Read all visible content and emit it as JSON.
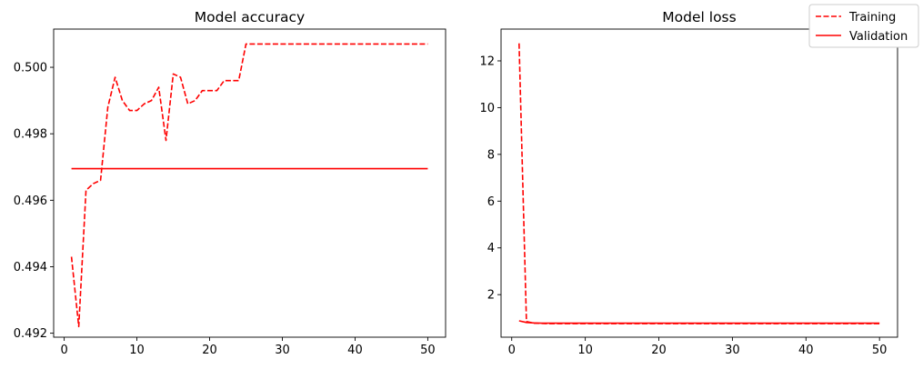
{
  "legend": {
    "placement": "top-right",
    "entries": [
      {
        "name": "Training",
        "style": "dashed",
        "color": "#ff0000"
      },
      {
        "name": "Validation",
        "style": "solid",
        "color": "#ff0000"
      }
    ]
  },
  "chart_data": [
    {
      "type": "line",
      "title": "Model accuracy",
      "xlabel": "",
      "ylabel": "",
      "xlim": [
        -1.45,
        52.45
      ],
      "ylim": [
        0.49188,
        0.50115
      ],
      "xticks": [
        0,
        10,
        20,
        30,
        40,
        50
      ],
      "yticks": [
        0.492,
        0.494,
        0.496,
        0.498,
        0.5
      ],
      "ytick_labels": [
        "0.492",
        "0.494",
        "0.496",
        "0.498",
        "0.500"
      ],
      "grid": false,
      "series": [
        {
          "name": "Training",
          "style": "dashed",
          "color": "#ff0000",
          "x": [
            1,
            2,
            3,
            4,
            5,
            6,
            7,
            8,
            9,
            10,
            11,
            12,
            13,
            14,
            15,
            16,
            17,
            18,
            19,
            20,
            21,
            22,
            23,
            24,
            25,
            26,
            27,
            28,
            29,
            30,
            31,
            32,
            33,
            34,
            35,
            36,
            37,
            38,
            39,
            40,
            41,
            42,
            43,
            44,
            45,
            46,
            47,
            48,
            49,
            50
          ],
          "values": [
            0.4943,
            0.4922,
            0.4963,
            0.4965,
            0.4966,
            0.4988,
            0.4997,
            0.499,
            0.4987,
            0.4987,
            0.4989,
            0.499,
            0.4994,
            0.4978,
            0.4998,
            0.4997,
            0.4989,
            0.499,
            0.4993,
            0.4993,
            0.4993,
            0.4996,
            0.4996,
            0.4996,
            0.5007,
            0.5007,
            0.5007,
            0.5007,
            0.5007,
            0.5007,
            0.5007,
            0.5007,
            0.5007,
            0.5007,
            0.5007,
            0.5007,
            0.5007,
            0.5007,
            0.5007,
            0.5007,
            0.5007,
            0.5007,
            0.5007,
            0.5007,
            0.5007,
            0.5007,
            0.5007,
            0.5007,
            0.5007,
            0.5007
          ]
        },
        {
          "name": "Validation",
          "style": "solid",
          "color": "#ff0000",
          "x": [
            1,
            50
          ],
          "values": [
            0.49695,
            0.49695
          ]
        }
      ]
    },
    {
      "type": "line",
      "title": "Model loss",
      "xlabel": "",
      "ylabel": "",
      "xlim": [
        -1.45,
        52.45
      ],
      "ylim": [
        0.18,
        13.36
      ],
      "xticks": [
        0,
        10,
        20,
        30,
        40,
        50
      ],
      "yticks": [
        2,
        4,
        6,
        8,
        10,
        12
      ],
      "ytick_labels": [
        "2",
        "4",
        "6",
        "8",
        "10",
        "12"
      ],
      "grid": false,
      "series": [
        {
          "name": "Training",
          "style": "dashed",
          "color": "#ff0000",
          "x": [
            1,
            2,
            3,
            4,
            5,
            6,
            7,
            8,
            9,
            10,
            11,
            12,
            13,
            14,
            15,
            16,
            17,
            18,
            19,
            20,
            21,
            22,
            23,
            24,
            25,
            26,
            27,
            28,
            29,
            30,
            31,
            32,
            33,
            34,
            35,
            36,
            37,
            38,
            39,
            40,
            41,
            42,
            43,
            44,
            45,
            46,
            47,
            48,
            49,
            50
          ],
          "values": [
            12.75,
            0.85,
            0.78,
            0.77,
            0.76,
            0.76,
            0.76,
            0.76,
            0.76,
            0.76,
            0.76,
            0.76,
            0.76,
            0.76,
            0.76,
            0.76,
            0.76,
            0.76,
            0.76,
            0.76,
            0.76,
            0.76,
            0.76,
            0.76,
            0.76,
            0.76,
            0.76,
            0.76,
            0.76,
            0.76,
            0.76,
            0.76,
            0.76,
            0.76,
            0.76,
            0.76,
            0.76,
            0.76,
            0.76,
            0.76,
            0.76,
            0.76,
            0.76,
            0.76,
            0.76,
            0.76,
            0.76,
            0.76,
            0.76,
            0.76
          ]
        },
        {
          "name": "Validation",
          "style": "solid",
          "color": "#ff0000",
          "x": [
            1,
            2,
            3,
            4,
            5,
            6,
            7,
            8,
            9,
            10,
            11,
            12,
            13,
            14,
            15,
            16,
            17,
            18,
            19,
            20,
            21,
            22,
            23,
            24,
            25,
            26,
            27,
            28,
            29,
            30,
            31,
            32,
            33,
            34,
            35,
            36,
            37,
            38,
            39,
            40,
            41,
            42,
            43,
            44,
            45,
            46,
            47,
            48,
            49,
            50
          ],
          "values": [
            0.88,
            0.81,
            0.79,
            0.78,
            0.78,
            0.78,
            0.78,
            0.78,
            0.78,
            0.78,
            0.78,
            0.78,
            0.78,
            0.78,
            0.78,
            0.78,
            0.78,
            0.78,
            0.78,
            0.78,
            0.78,
            0.78,
            0.78,
            0.78,
            0.78,
            0.78,
            0.78,
            0.78,
            0.78,
            0.78,
            0.78,
            0.78,
            0.78,
            0.78,
            0.78,
            0.78,
            0.78,
            0.78,
            0.78,
            0.78,
            0.78,
            0.78,
            0.78,
            0.78,
            0.78,
            0.78,
            0.78,
            0.78,
            0.78,
            0.78
          ]
        }
      ]
    }
  ]
}
